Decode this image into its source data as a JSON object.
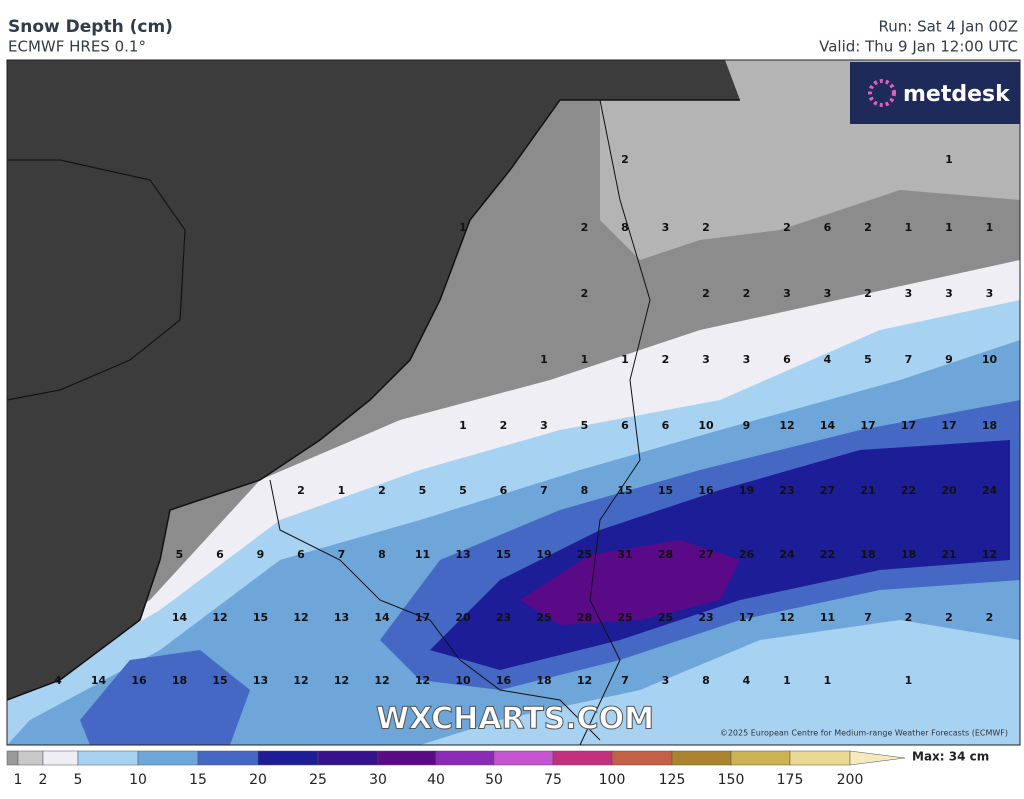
{
  "header": {
    "title": "Snow Depth (cm)",
    "model": "ECMWF HRES 0.1°",
    "run": "Run: Sat 4 Jan 00Z",
    "valid": "Valid: Thu 9 Jan 12:00 UTC"
  },
  "logo": "metdesk",
  "watermark": "WXCHARTS.COM",
  "credit": "©2025 European Centre for Medium-range Weather Forecasts (ECMWF)",
  "map_values": [
    [
      null,
      null,
      null,
      null,
      null,
      null,
      null,
      null,
      null,
      null,
      null,
      null,
      null,
      null,
      2,
      null,
      null,
      null,
      null,
      null,
      null,
      null,
      1,
      null
    ],
    [
      null,
      null,
      null,
      null,
      null,
      null,
      null,
      null,
      null,
      null,
      1,
      null,
      null,
      2,
      8,
      3,
      2,
      null,
      2,
      6,
      2,
      1,
      1,
      1
    ],
    [
      null,
      null,
      null,
      null,
      null,
      null,
      null,
      null,
      null,
      null,
      null,
      null,
      null,
      2,
      null,
      null,
      2,
      2,
      3,
      3,
      2,
      3,
      3,
      3
    ],
    [
      null,
      null,
      null,
      null,
      null,
      null,
      null,
      null,
      null,
      null,
      null,
      null,
      1,
      1,
      1,
      2,
      3,
      3,
      6,
      4,
      5,
      7,
      9,
      10
    ],
    [
      null,
      null,
      null,
      null,
      null,
      null,
      null,
      null,
      null,
      null,
      1,
      2,
      3,
      5,
      6,
      6,
      10,
      9,
      12,
      14,
      17,
      17,
      17,
      18
    ],
    [
      null,
      null,
      null,
      null,
      null,
      null,
      2,
      1,
      2,
      5,
      5,
      6,
      7,
      8,
      15,
      15,
      16,
      19,
      23,
      27,
      21,
      22,
      20,
      24
    ],
    [
      null,
      null,
      null,
      5,
      6,
      9,
      6,
      7,
      8,
      11,
      13,
      15,
      19,
      25,
      31,
      28,
      27,
      26,
      24,
      22,
      18,
      18,
      21,
      12
    ],
    [
      null,
      null,
      null,
      14,
      12,
      15,
      12,
      13,
      14,
      17,
      20,
      23,
      25,
      28,
      25,
      25,
      23,
      17,
      12,
      11,
      7,
      2,
      2,
      2
    ],
    [
      4,
      14,
      16,
      18,
      15,
      13,
      12,
      12,
      12,
      12,
      10,
      16,
      18,
      12,
      7,
      3,
      8,
      4,
      1,
      1,
      null,
      1,
      null,
      null
    ]
  ],
  "colorbar": {
    "labels": [
      1,
      2,
      5,
      10,
      15,
      20,
      25,
      30,
      40,
      50,
      75,
      100,
      125,
      150,
      175,
      200
    ],
    "colors": [
      "#9a9a9a",
      "#c8c8c8",
      "#eeeef4",
      "#a8d2f2",
      "#6ea6da",
      "#4568c4",
      "#1d1d98",
      "#36128c",
      "#5a0a86",
      "#8a2ab6",
      "#c454d0",
      "#c0307c",
      "#c46048",
      "#ac8430",
      "#ccb252",
      "#ead992",
      "#f6eabc"
    ],
    "max_label": "Max: 34 cm"
  }
}
